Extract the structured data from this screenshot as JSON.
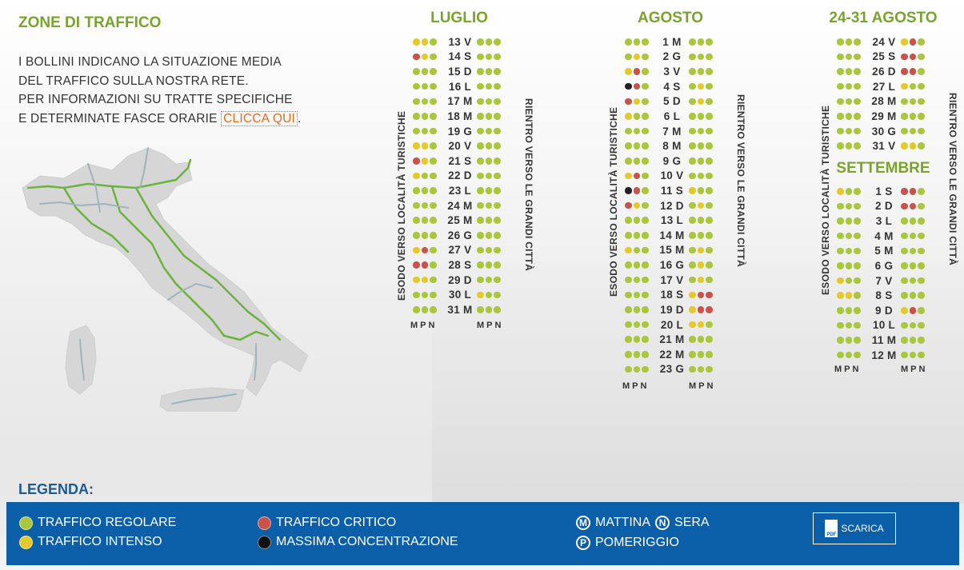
{
  "header": {
    "title": "ZONE DI TRAFFICO",
    "intro_lines": [
      "I BOLLINI INDICANO LA SITUAZIONE MEDIA",
      "DEL TRAFFICO SULLA NOSTRA RETE.",
      "PER INFORMAZIONI SU TRATTE SPECIFICHE",
      "E DETERMINATE FASCE ORARIE "
    ],
    "link": "CLICCA QUI",
    "after_link": "."
  },
  "colors": {
    "g": "#a9c63c",
    "y": "#e4c92a",
    "r": "#c9534b",
    "k": "#222222",
    "accent": "#79a42c",
    "legend_bg": "#0b5ea8"
  },
  "labels": {
    "esodo": "ESODO VERSO LOCALITÀ TURISTICHE",
    "rientro": "RIENTRO VERSO LE GRANDI CITTÀ",
    "mpn": "MPN"
  },
  "calendars": [
    {
      "title": "LUGLIO",
      "rows": [
        {
          "day": "13 V",
          "out": "yyg",
          "in": "ggg"
        },
        {
          "day": "14 S",
          "out": "ryg",
          "in": "ggg"
        },
        {
          "day": "15 D",
          "out": "ggg",
          "in": "ggg"
        },
        {
          "day": "16 L",
          "out": "ggg",
          "in": "ggg"
        },
        {
          "day": "17 M",
          "out": "ggg",
          "in": "ggg"
        },
        {
          "day": "18 M",
          "out": "ggg",
          "in": "ggg"
        },
        {
          "day": "19 G",
          "out": "ggg",
          "in": "ggg"
        },
        {
          "day": "20 V",
          "out": "yyg",
          "in": "ggg"
        },
        {
          "day": "21 S",
          "out": "ryg",
          "in": "ggg"
        },
        {
          "day": "22 D",
          "out": "ygg",
          "in": "ggg"
        },
        {
          "day": "23 L",
          "out": "ggg",
          "in": "ggg"
        },
        {
          "day": "24 M",
          "out": "ggg",
          "in": "ggg"
        },
        {
          "day": "25 M",
          "out": "ggg",
          "in": "ggg"
        },
        {
          "day": "26 G",
          "out": "ggg",
          "in": "ggg"
        },
        {
          "day": "27 V",
          "out": "yrg",
          "in": "ggg"
        },
        {
          "day": "28 S",
          "out": "rrg",
          "in": "ggg"
        },
        {
          "day": "29 D",
          "out": "yyg",
          "in": "ggg"
        },
        {
          "day": "30 L",
          "out": "ggg",
          "in": "ygg"
        },
        {
          "day": "31 M",
          "out": "ggg",
          "in": "ggg"
        }
      ]
    },
    {
      "title": "AGOSTO",
      "rows": [
        {
          "day": "1 M",
          "out": "ggg",
          "in": "ggg"
        },
        {
          "day": "2 G",
          "out": "gyg",
          "in": "ggg"
        },
        {
          "day": "3 V",
          "out": "yrg",
          "in": "ggg"
        },
        {
          "day": "4 S",
          "out": "krg",
          "in": "gyg"
        },
        {
          "day": "5 D",
          "out": "ryg",
          "in": "gyg"
        },
        {
          "day": "6 L",
          "out": "ygg",
          "in": "ggg"
        },
        {
          "day": "7 M",
          "out": "ggg",
          "in": "ggg"
        },
        {
          "day": "8 M",
          "out": "ggg",
          "in": "ggg"
        },
        {
          "day": "9 G",
          "out": "ggg",
          "in": "ggg"
        },
        {
          "day": "10 V",
          "out": "yrg",
          "in": "ggg"
        },
        {
          "day": "11 S",
          "out": "krg",
          "in": "ygg"
        },
        {
          "day": "12 D",
          "out": "ryg",
          "in": "gyg"
        },
        {
          "day": "13 L",
          "out": "ggg",
          "in": "ggg"
        },
        {
          "day": "14 M",
          "out": "ggg",
          "in": "ggg"
        },
        {
          "day": "15 M",
          "out": "ygg",
          "in": "gyg"
        },
        {
          "day": "16 G",
          "out": "ggg",
          "in": "gyg"
        },
        {
          "day": "17 V",
          "out": "ggg",
          "in": "gyg"
        },
        {
          "day": "18 S",
          "out": "ggg",
          "in": "yrr"
        },
        {
          "day": "19 D",
          "out": "ggg",
          "in": "yrr"
        },
        {
          "day": "20 L",
          "out": "ggg",
          "in": "yyg"
        },
        {
          "day": "21 M",
          "out": "ggg",
          "in": "ggg"
        },
        {
          "day": "22 M",
          "out": "ggg",
          "in": "ggg"
        },
        {
          "day": "23 G",
          "out": "ggg",
          "in": "ggg"
        }
      ]
    },
    {
      "title": "24-31 AGOSTO",
      "rows": [
        {
          "day": "24 V",
          "out": "ggg",
          "in": "yrg"
        },
        {
          "day": "25 S",
          "out": "ggg",
          "in": "rrg"
        },
        {
          "day": "26 D",
          "out": "ggg",
          "in": "rrg"
        },
        {
          "day": "27 L",
          "out": "ggg",
          "in": "ygg"
        },
        {
          "day": "28 M",
          "out": "ggg",
          "in": "ggg"
        },
        {
          "day": "29 M",
          "out": "ggg",
          "in": "ggg"
        },
        {
          "day": "30 G",
          "out": "ggg",
          "in": "ggg"
        },
        {
          "day": "31 V",
          "out": "ggg",
          "in": "yyg"
        }
      ]
    },
    {
      "title": "SETTEMBRE",
      "rows": [
        {
          "day": "1 S",
          "out": "ygg",
          "in": "rrg"
        },
        {
          "day": "2 D",
          "out": "ggg",
          "in": "rrg"
        },
        {
          "day": "3 L",
          "out": "ggg",
          "in": "ggg"
        },
        {
          "day": "4 M",
          "out": "ggg",
          "in": "ggg"
        },
        {
          "day": "5 M",
          "out": "ggg",
          "in": "ggg"
        },
        {
          "day": "6 G",
          "out": "ggg",
          "in": "ggg"
        },
        {
          "day": "7 V",
          "out": "ygg",
          "in": "ggg"
        },
        {
          "day": "8 S",
          "out": "yyg",
          "in": "ggg"
        },
        {
          "day": "9 D",
          "out": "ggg",
          "in": "yrg"
        },
        {
          "day": "10 L",
          "out": "ggg",
          "in": "ggg"
        },
        {
          "day": "11 M",
          "out": "ggg",
          "in": "ggg"
        },
        {
          "day": "12 M",
          "out": "ggg",
          "in": "ggg"
        }
      ]
    }
  ],
  "legend": {
    "title": "LEGENDA:",
    "regolare": "TRAFFICO REGOLARE",
    "intenso": "TRAFFICO INTENSO",
    "critico": "TRAFFICO CRITICO",
    "massima": "MASSIMA CONCENTRAZIONE",
    "mattina": "MATTINA",
    "sera": "SERA",
    "pomeriggio": "POMERIGGIO",
    "m_letter": "M",
    "n_letter": "N",
    "p_letter": "P",
    "download": "SCARICA",
    "pdf": "PDF"
  }
}
